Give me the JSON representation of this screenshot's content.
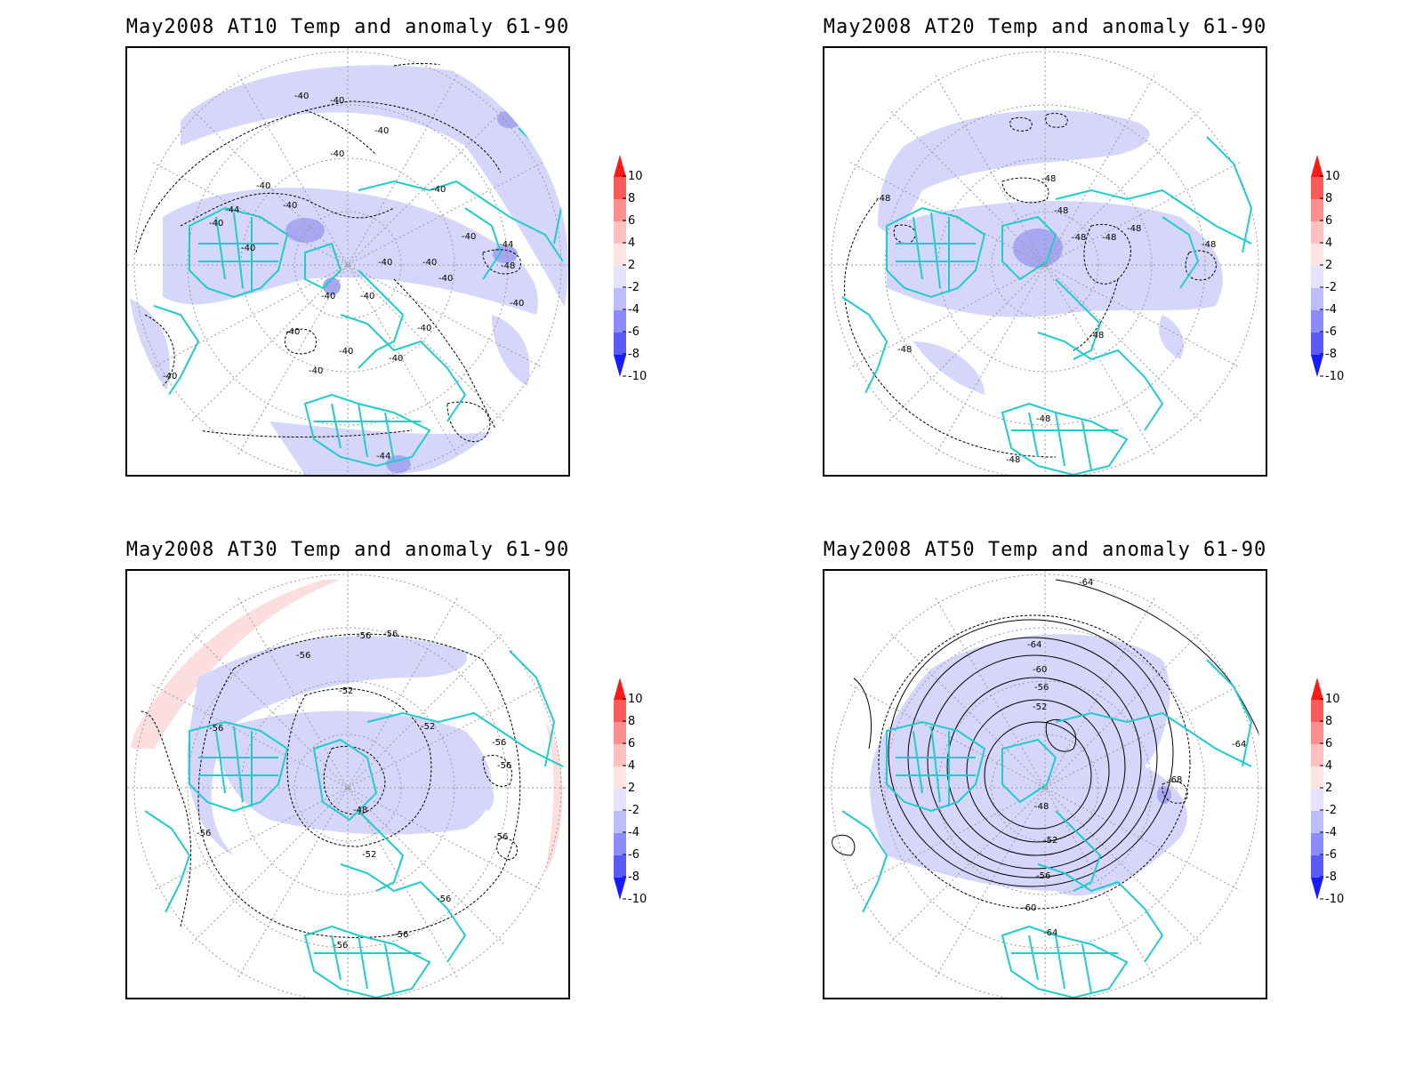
{
  "panels": [
    {
      "id": "at10",
      "title": "May2008 AT10 Temp and anomaly 61-90",
      "contour_labels": [
        "-40",
        "-40",
        "-40",
        "-40",
        "-40",
        "-40",
        "-44",
        "-40",
        "-40",
        "-40",
        "-44",
        "-48",
        "-40",
        "-40",
        "-40",
        "-40",
        "-40",
        "-40",
        "-40",
        "-40",
        "-40",
        "-40",
        "-40",
        "-40",
        "-40",
        "-44"
      ]
    },
    {
      "id": "at20",
      "title": "May2008 AT20 Temp and anomaly 61-90",
      "contour_labels": [
        "-48",
        "-48",
        "-48",
        "-48",
        "-48",
        "-48",
        "-48",
        "-48",
        "-48",
        "-48",
        "-48"
      ]
    },
    {
      "id": "at30",
      "title": "May2008 AT30 Temp and anomaly 61-90",
      "contour_labels": [
        "-56",
        "-56",
        "-56",
        "-52",
        "-56",
        "-52",
        "-56",
        "-56",
        "-48",
        "-52",
        "-56",
        "-56",
        "-56",
        "-56",
        "-56"
      ]
    },
    {
      "id": "at50",
      "title": "May2008 AT50 Temp and anomaly 61-90",
      "contour_labels": [
        "-64",
        "-64",
        "-60",
        "-56",
        "-52",
        "-64",
        "-48",
        "-68",
        "-52",
        "-56",
        "-60",
        "-64"
      ]
    }
  ],
  "colorbar": {
    "labels": [
      "10",
      "8",
      "6",
      "4",
      "2",
      "-2",
      "-4",
      "-6",
      "-8",
      "-10"
    ],
    "colors": {
      "pos10": "#ff1a1a",
      "pos8": "#ff5a5a",
      "pos6": "#ff8e8e",
      "pos4": "#ffc0c0",
      "pos2": "#ffe4e4",
      "neg2": "#e4e4ff",
      "neg4": "#bcbcff",
      "neg6": "#8c8cff",
      "neg8": "#5a5aff",
      "neg10": "#1a1aff"
    }
  },
  "colors": {
    "coast": "#22cccc",
    "anom_neg": "#d6d6fb",
    "anom_neg_strong": "#a7a7f2",
    "anom_pos": "#fcdede"
  }
}
